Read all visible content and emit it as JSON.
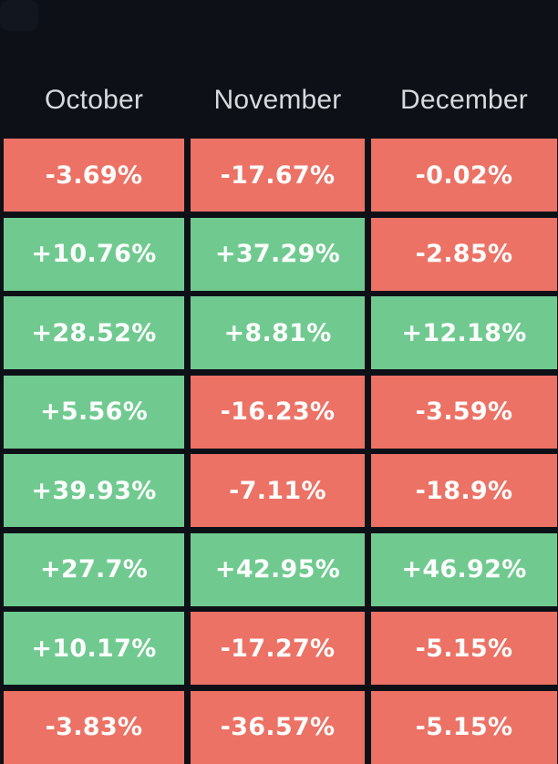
{
  "colors": {
    "background": "#0d1117",
    "positive_cell": "#70ca90",
    "negative_cell": "#ec7265",
    "header_text": "#d7dadd",
    "cell_text": "#fdfdfd"
  },
  "chart_data": {
    "type": "heatmap",
    "columns": [
      "October",
      "November",
      "December"
    ],
    "rows": [
      [
        "-3.69%",
        "-17.67%",
        "-0.02%"
      ],
      [
        "+10.76%",
        "+37.29%",
        "-2.85%"
      ],
      [
        "+28.52%",
        "+8.81%",
        "+12.18%"
      ],
      [
        "+5.56%",
        "-16.23%",
        "-3.59%"
      ],
      [
        "+39.93%",
        "-7.11%",
        "-18.9%"
      ],
      [
        "+27.7%",
        "+42.95%",
        "+46.92%"
      ],
      [
        "+10.17%",
        "-17.27%",
        "-5.15%"
      ],
      [
        "-3.83%",
        "-36.57%",
        "-5.15%"
      ]
    ],
    "value_sign_colors": {
      "positive": "#70ca90",
      "negative": "#ec7265"
    },
    "legend_position": "none",
    "grid": false
  }
}
